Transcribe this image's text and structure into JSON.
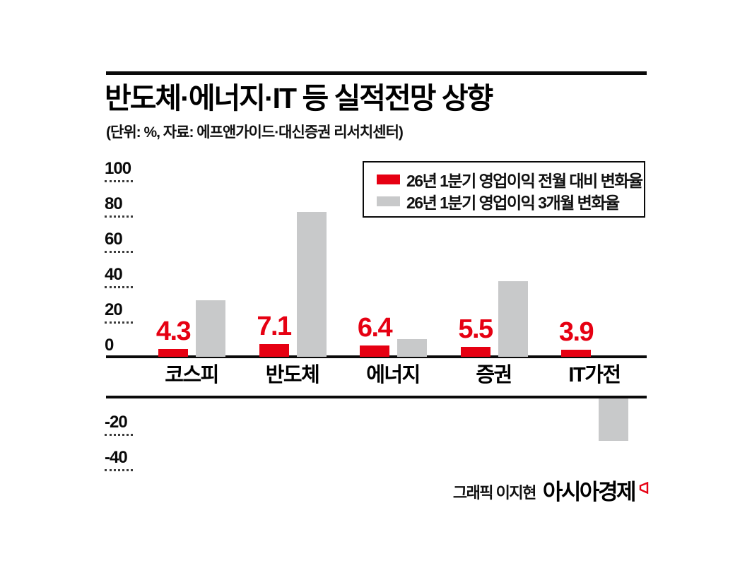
{
  "colors": {
    "accent_red": "#e60012",
    "bar_gray": "#c8c9ca",
    "ink": "#0a0a0a"
  },
  "header": {
    "title": "반도체·에너지·IT 등 실적전망 상향",
    "subtitle": "(단위: %, 자료: 에프앤가이드·대신증권 리서치센터)"
  },
  "legend": {
    "position": "top-right-in-plot",
    "items": [
      {
        "label": "26년 1분기 영업이익 전월 대비 변화율",
        "color": "#e60012"
      },
      {
        "label": "26년 1분기 영업이익 3개월 변화율",
        "color": "#c8c9ca"
      }
    ]
  },
  "chart_data": {
    "type": "bar",
    "categories": [
      "코스피",
      "반도체",
      "에너지",
      "증권",
      "IT가전"
    ],
    "series": [
      {
        "name": "26년 1분기 영업이익 전월 대비 변화율",
        "color": "#e60012",
        "values": [
          4.3,
          7.1,
          6.4,
          5.5,
          3.9
        ],
        "data_labels": [
          "4.3",
          "7.1",
          "6.4",
          "5.5",
          "3.9"
        ]
      },
      {
        "name": "26년 1분기 영업이익 3개월 변화율",
        "color": "#c8c9ca",
        "values": [
          32,
          82,
          10,
          43,
          -24
        ]
      }
    ],
    "unit": "%",
    "ylim": [
      -40,
      100
    ],
    "yticks_top": [
      100,
      80,
      60,
      40,
      20,
      0
    ],
    "yticks_bottom": [
      -20,
      -40
    ],
    "grid": "short dotted ticks on left axis only",
    "axis_break": "category label band between 0 and negative region"
  },
  "footer": {
    "credit": "그래픽 이지현",
    "logo": "아시아경제"
  }
}
